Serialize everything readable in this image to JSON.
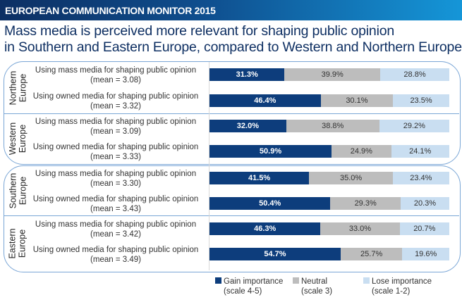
{
  "header": {
    "title": "EUROPEAN COMMUNICATION MONITOR 2015"
  },
  "chart_data": {
    "type": "bar",
    "stacked": true,
    "orientation": "horizontal",
    "title": "Mass media is perceived more relevant for shaping public opinion in Southern and Eastern Europe, compared to Western and Northern Europe",
    "title_lines": [
      "Mass media is perceived more relevant for shaping public opinion",
      "in Southern and Eastern Europe, compared to Western and Northern Europe"
    ],
    "groups": [
      {
        "region_lines": [
          "Northern",
          "Europe"
        ],
        "rows": [
          {
            "label": "Using mass media for shaping public opinion",
            "mean": "(mean = 3.08)",
            "values": [
              31.3,
              39.9,
              28.8
            ]
          },
          {
            "label": "Using owned media for shaping public opinion",
            "mean": "(mean = 3.32)",
            "values": [
              46.4,
              30.1,
              23.5
            ]
          }
        ]
      },
      {
        "region_lines": [
          "Western",
          "Europe"
        ],
        "rows": [
          {
            "label": "Using mass media for shaping public opinion",
            "mean": "(mean = 3.09)",
            "values": [
              32.0,
              38.8,
              29.2
            ]
          },
          {
            "label": "Using owned media for shaping public opinion",
            "mean": "(mean = 3.33)",
            "values": [
              50.9,
              24.9,
              24.1
            ]
          }
        ]
      },
      {
        "region_lines": [
          "Southern",
          "Europe"
        ],
        "rows": [
          {
            "label": "Using mass media for shaping public opinion",
            "mean": "(mean = 3.30)",
            "values": [
              41.5,
              35.0,
              23.4
            ]
          },
          {
            "label": "Using owned media for shaping public opinion",
            "mean": "(mean = 3.43)",
            "values": [
              50.4,
              29.3,
              20.3
            ]
          }
        ]
      },
      {
        "region_lines": [
          "Eastern",
          "Europe"
        ],
        "rows": [
          {
            "label": "Using mass media for shaping public opinion",
            "mean": "(mean = 3.42)",
            "values": [
              46.3,
              33.0,
              20.7
            ]
          },
          {
            "label": "Using owned media for shaping public opinion",
            "mean": "(mean = 3.49)",
            "values": [
              54.7,
              25.7,
              19.6
            ]
          }
        ]
      }
    ],
    "series": [
      {
        "name": "Gain importance",
        "sub": "(scale 4-5)",
        "color": "#0d3d7c",
        "text_color": "#ffffff"
      },
      {
        "name": "Neutral",
        "sub": "(scale 3)",
        "color": "#bdbdbd",
        "text_color": "#333333"
      },
      {
        "name": "Lose importance",
        "sub": "(scale 1-2)",
        "color": "#c9def1",
        "text_color": "#333333"
      }
    ],
    "unit": "%",
    "xlim": [
      0,
      100
    ],
    "legend": "bottom"
  }
}
